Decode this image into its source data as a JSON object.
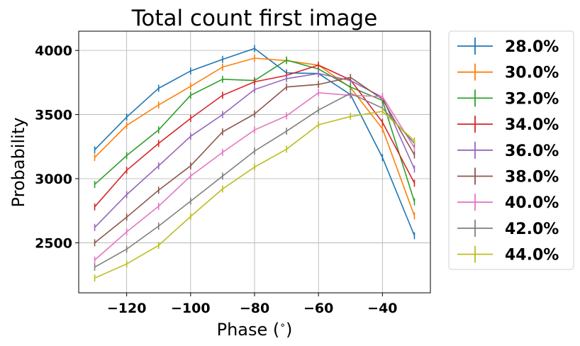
{
  "chart_data": {
    "type": "line",
    "title": "Total count first image",
    "xlabel": "Phase ($^\\circ$)",
    "xlabel_display": "Phase (",
    "xlabel_degree": "∘",
    "xlabel_close": ")",
    "ylabel": "Probability",
    "xlim": [
      -135,
      -25
    ],
    "ylim": [
      2110,
      4150
    ],
    "xticks": [
      -120,
      -100,
      -80,
      -60,
      -40
    ],
    "xtick_labels": [
      "−120",
      "−100",
      "−80",
      "−60",
      "−40"
    ],
    "yticks": [
      2500,
      3000,
      3500,
      4000
    ],
    "ytick_labels": [
      "2500",
      "3000",
      "3500",
      "4000"
    ],
    "grid": true,
    "legend_position": "outside-right",
    "x": [
      -130,
      -120,
      -110,
      -100,
      -90,
      -80,
      -70,
      -60,
      -50,
      -40,
      -30
    ],
    "series": [
      {
        "name": "28.0%",
        "color": "#1f77b4",
        "values": [
          3225,
          3480,
          3705,
          3840,
          3930,
          4015,
          3825,
          3820,
          3655,
          3165,
          2555
        ]
      },
      {
        "name": "30.0%",
        "color": "#ff7f0e",
        "values": [
          3165,
          3415,
          3575,
          3720,
          3870,
          3940,
          3920,
          3885,
          3710,
          3390,
          2710
        ]
      },
      {
        "name": "32.0%",
        "color": "#2ca02c",
        "values": [
          2955,
          3180,
          3380,
          3650,
          3775,
          3765,
          3925,
          3855,
          3715,
          3610,
          2820
        ]
      },
      {
        "name": "34.0%",
        "color": "#d62728",
        "values": [
          2780,
          3065,
          3275,
          3470,
          3650,
          3755,
          3805,
          3885,
          3770,
          3440,
          2965
        ]
      },
      {
        "name": "36.0%",
        "color": "#9467bd",
        "values": [
          2620,
          2875,
          3100,
          3330,
          3500,
          3695,
          3780,
          3820,
          3765,
          3635,
          3075
        ]
      },
      {
        "name": "38.0%",
        "color": "#8c564b",
        "values": [
          2500,
          2700,
          2910,
          3100,
          3365,
          3505,
          3715,
          3735,
          3790,
          3620,
          3185
        ]
      },
      {
        "name": "40.0%",
        "color": "#e377c2",
        "values": [
          2365,
          2585,
          2785,
          3020,
          3205,
          3380,
          3490,
          3670,
          3650,
          3640,
          3240
        ]
      },
      {
        "name": "42.0%",
        "color": "#7f7f7f",
        "values": [
          2310,
          2450,
          2630,
          2825,
          3020,
          3215,
          3370,
          3535,
          3665,
          3550,
          3275
        ]
      },
      {
        "name": "44.0%",
        "color": "#bcbd22",
        "values": [
          2225,
          2335,
          2480,
          2705,
          2920,
          3090,
          3230,
          3420,
          3485,
          3525,
          3295
        ]
      }
    ]
  }
}
